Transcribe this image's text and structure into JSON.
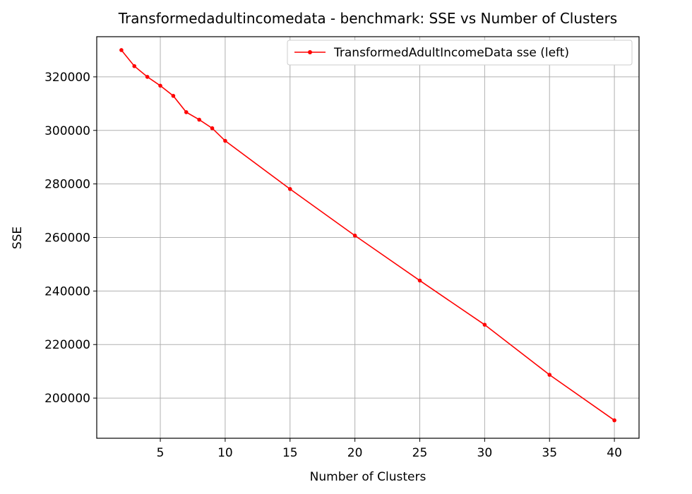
{
  "chart_data": {
    "type": "line",
    "title": "Transformedadultincomedata - benchmark: SSE vs Number of Clusters",
    "xlabel": "Number of Clusters",
    "ylabel": "SSE",
    "xlim": [
      0.1,
      41.9
    ],
    "ylim": [
      185000,
      335000
    ],
    "xticks": [
      5,
      10,
      15,
      20,
      25,
      30,
      35,
      40
    ],
    "yticks": [
      200000,
      220000,
      240000,
      260000,
      280000,
      300000,
      320000
    ],
    "grid": true,
    "legend_position": "top-right",
    "series": [
      {
        "name": "TransformedAdultIncomeData sse (left)",
        "color": "#ff0000",
        "marker": "circle",
        "x": [
          2,
          3,
          4,
          5,
          6,
          7,
          8,
          9,
          10,
          15,
          20,
          25,
          30,
          35,
          40
        ],
        "y": [
          330000,
          324000,
          320000,
          316700,
          312900,
          306800,
          304000,
          300800,
          296100,
          278100,
          260700,
          243900,
          227400,
          208700,
          191700
        ]
      }
    ]
  }
}
